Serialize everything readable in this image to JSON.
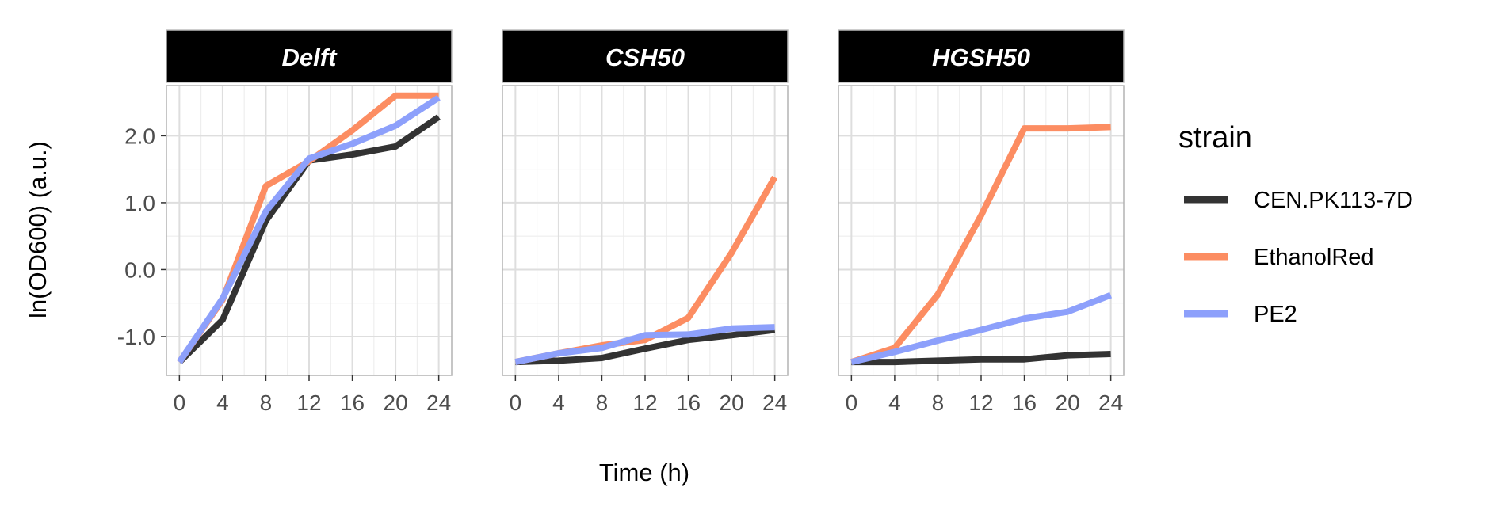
{
  "chart_data": {
    "type": "line",
    "xlabel": "Time (h)",
    "ylabel": "ln(OD600) (a.u.)",
    "x": [
      0,
      4,
      8,
      12,
      16,
      20,
      24
    ],
    "xticks": [
      "0",
      "4",
      "8",
      "12",
      "16",
      "20",
      "24"
    ],
    "xlim": [
      -1.2,
      25.2
    ],
    "yticks": [
      -1.0,
      0.0,
      1.0,
      2.0
    ],
    "ytick_labels": [
      "-1.0",
      "0.0",
      "1.0",
      "2.0"
    ],
    "ylim": [
      -1.58,
      2.75
    ],
    "grid": true,
    "legend": {
      "title": "strain",
      "position": "right",
      "entries": [
        "CEN.PK113-7D",
        "EthanolRed",
        "PE2"
      ]
    },
    "colors": {
      "CEN.PK113-7D": "#333333",
      "EthanolRed": "#fc8d62",
      "PE2": "#8da0fb"
    },
    "panels": [
      {
        "title": "Delft",
        "series": [
          {
            "name": "CEN.PK113-7D",
            "values": [
              -1.38,
              -0.75,
              0.73,
              1.63,
              1.72,
              1.84,
              2.28
            ]
          },
          {
            "name": "EthanolRed",
            "values": [
              -1.38,
              -0.45,
              1.25,
              1.62,
              2.08,
              2.6,
              2.6
            ]
          },
          {
            "name": "PE2",
            "values": [
              -1.38,
              -0.43,
              0.87,
              1.66,
              1.88,
              2.15,
              2.57
            ]
          }
        ]
      },
      {
        "title": "CSH50",
        "series": [
          {
            "name": "CEN.PK113-7D",
            "values": [
              -1.38,
              -1.36,
              -1.32,
              -1.18,
              -1.05,
              -0.98,
              -0.9
            ]
          },
          {
            "name": "EthanolRed",
            "values": [
              -1.38,
              -1.25,
              -1.13,
              -1.05,
              -0.72,
              0.25,
              1.38
            ]
          },
          {
            "name": "PE2",
            "values": [
              -1.38,
              -1.25,
              -1.17,
              -0.98,
              -0.97,
              -0.88,
              -0.86
            ]
          }
        ]
      },
      {
        "title": "HGSH50",
        "series": [
          {
            "name": "CEN.PK113-7D",
            "values": [
              -1.38,
              -1.38,
              -1.36,
              -1.34,
              -1.34,
              -1.28,
              -1.26
            ]
          },
          {
            "name": "EthanolRed",
            "values": [
              -1.38,
              -1.17,
              -0.37,
              0.81,
              2.11,
              2.11,
              2.13
            ]
          },
          {
            "name": "PE2",
            "values": [
              -1.38,
              -1.23,
              -1.06,
              -0.9,
              -0.73,
              -0.63,
              -0.38
            ]
          }
        ]
      }
    ]
  }
}
